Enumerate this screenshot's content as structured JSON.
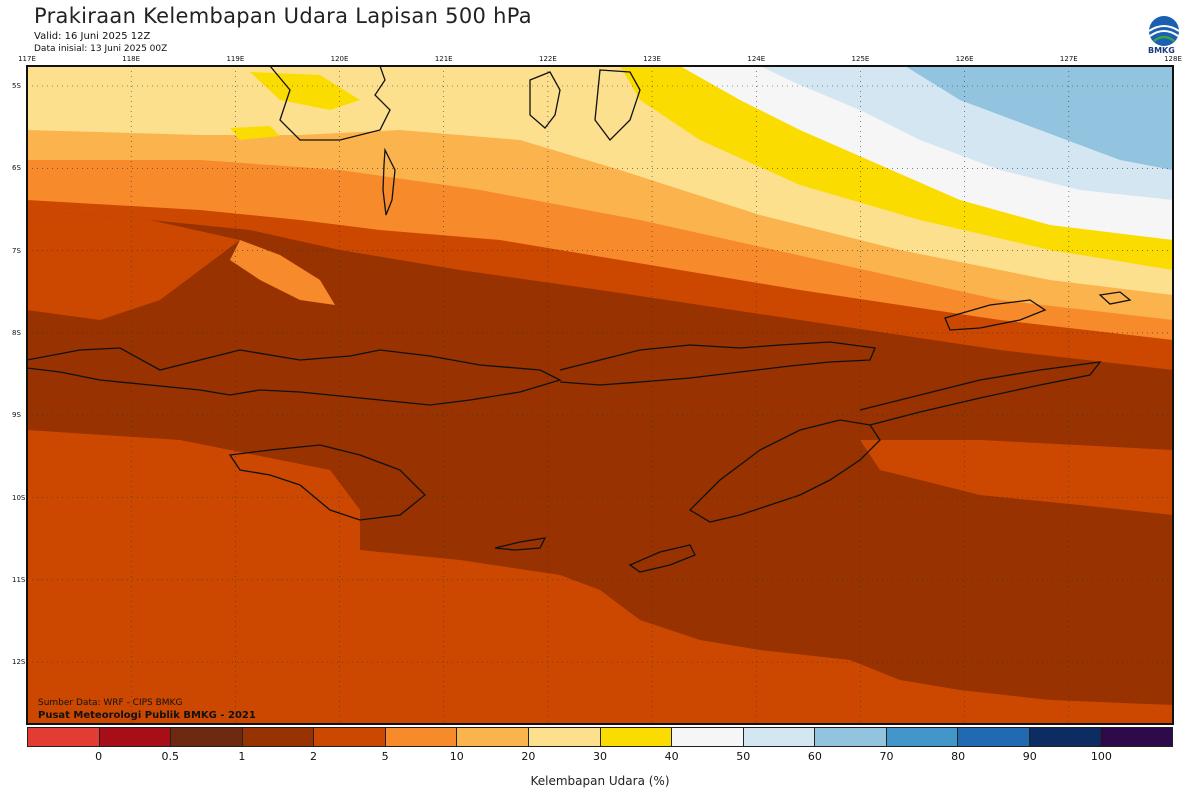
{
  "header": {
    "title": "Prakiraan Kelembapan Udara Lapisan 500 hPa",
    "valid": "Valid: 16 Juni 2025 12Z",
    "init": "Data inisial: 13 Juni 2025 00Z",
    "logo_text": "BMKG"
  },
  "map": {
    "lon_labels": [
      "117E",
      "118E",
      "119E",
      "120E",
      "121E",
      "122E",
      "123E",
      "124E",
      "125E",
      "126E",
      "127E",
      "128E"
    ],
    "lat_labels": [
      "5S",
      "6S",
      "7S",
      "8S",
      "9S",
      "10S",
      "11S",
      "12S"
    ],
    "colors": {
      "c10_20": "#fbb34d",
      "c20_30": "#fde08e",
      "c30_40": "#fbdc00",
      "c40_50": "#f6f6f6",
      "c50_60": "#d3e6f2",
      "c60_70": "#92c3df",
      "c2_5": "#cc4800",
      "c1_2": "#983200",
      "c5_10": "#f78a2a",
      "coast": "#111111"
    }
  },
  "footer": {
    "source": "Sumber Data: WRF - CIPS BMKG",
    "center": "Pusat Meteorologi Publik BMKG - 2021"
  },
  "colorbar": {
    "colors": [
      "#e33c33",
      "#a80e17",
      "#6e2a10",
      "#983200",
      "#cc4800",
      "#f78a2a",
      "#fbb34d",
      "#fde08e",
      "#fbdc00",
      "#f6f6f6",
      "#d3e6f2",
      "#92c3df",
      "#4296c9",
      "#2169b0",
      "#0d2c62",
      "#2e0a4a"
    ],
    "ticks": [
      "0",
      "0.5",
      "1",
      "2",
      "5",
      "10",
      "20",
      "30",
      "40",
      "50",
      "60",
      "70",
      "80",
      "90",
      "100"
    ],
    "label": "Kelembapan Udara (%)"
  }
}
